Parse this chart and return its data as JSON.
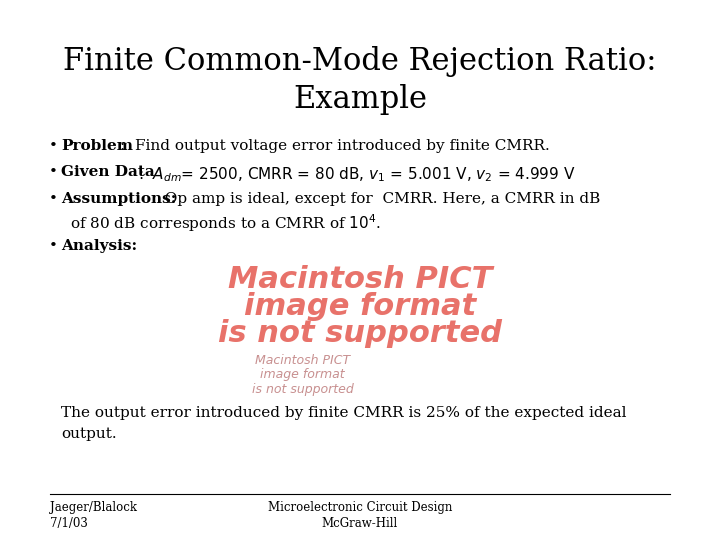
{
  "title_line1": "Finite Common-Mode Rejection Ratio:",
  "title_line2": "Example",
  "title_fontsize": 22,
  "body_fontsize": 11,
  "small_fontsize": 8.5,
  "background_color": "#ffffff",
  "text_color": "#000000",
  "pict_color_large": "#e8726a",
  "pict_color_small": "#c89090",
  "pict_large_lines": [
    "Macintosh PICT",
    "image format",
    "is not supported"
  ],
  "pict_small_lines": [
    "Macintosh PICT",
    "image format",
    "is not supported"
  ],
  "footer_left_line1": "Jaeger/Blalock",
  "footer_left_line2": "7/1/03",
  "footer_center_line1": "Microelectronic Circuit Design",
  "footer_center_line2": "McGraw-Hill",
  "conclusion_line1": "The output error introduced by finite CMRR is 25% of the expected ideal",
  "conclusion_line2": "output."
}
